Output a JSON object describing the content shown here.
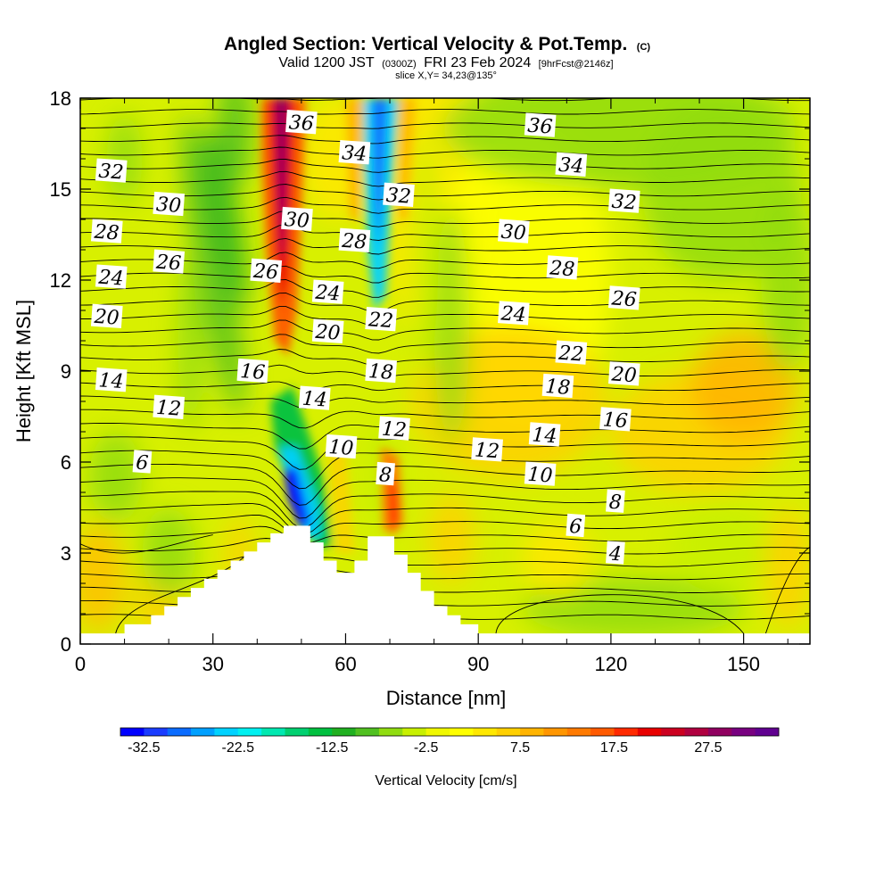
{
  "chart_data": {
    "type": "contour",
    "title": "Angled Section: Vertical Velocity & Pot.Temp.",
    "title_unit": "(C)",
    "subtitle": {
      "part1": "Valid 1200 JST",
      "part2": "(0300Z)",
      "part3": "FRI 23 Feb 2024",
      "part4": "[9hrFcst@2146z]"
    },
    "slice_text": "slice X,Y= 34,23@135°",
    "xlabel": "Distance [nm]",
    "ylabel": "Height [Kft MSL]",
    "xlim": [
      0,
      165
    ],
    "ylim": [
      0,
      18
    ],
    "x_ticks": [
      0,
      30,
      60,
      90,
      120,
      150
    ],
    "y_ticks": [
      0,
      3,
      6,
      9,
      12,
      15,
      18
    ],
    "colorbar": {
      "label": "Vertical Velocity [cm/s]",
      "range": [
        -35,
        35
      ],
      "tick_values": [
        "-32.5",
        "-22.5",
        "-12.5",
        "-2.5",
        "7.5",
        "17.5",
        "27.5"
      ],
      "colors": [
        "#0000ff",
        "#1a3cff",
        "#0a6cff",
        "#00a0ff",
        "#00d2ff",
        "#00f0f0",
        "#00e8b0",
        "#00d070",
        "#00c040",
        "#20b020",
        "#50c020",
        "#90dc10",
        "#c8f000",
        "#f0f800",
        "#ffff00",
        "#ffe800",
        "#ffd000",
        "#ffb400",
        "#ff9600",
        "#ff7a00",
        "#ff5a00",
        "#ff2a00",
        "#e80000",
        "#cc0020",
        "#b00040",
        "#900060",
        "#780080",
        "#600090"
      ]
    },
    "terrain_kft": [
      [
        0,
        0.35
      ],
      [
        10,
        0.35
      ],
      [
        10,
        0.65
      ],
      [
        16,
        0.65
      ],
      [
        16,
        0.95
      ],
      [
        19,
        0.95
      ],
      [
        19,
        1.25
      ],
      [
        22,
        1.25
      ],
      [
        22,
        1.55
      ],
      [
        25,
        1.55
      ],
      [
        25,
        1.85
      ],
      [
        28,
        1.85
      ],
      [
        28,
        2.15
      ],
      [
        31,
        2.15
      ],
      [
        31,
        2.45
      ],
      [
        34,
        2.45
      ],
      [
        34,
        2.75
      ],
      [
        37,
        2.75
      ],
      [
        37,
        3.05
      ],
      [
        40,
        3.05
      ],
      [
        40,
        3.35
      ],
      [
        43,
        3.35
      ],
      [
        43,
        3.65
      ],
      [
        46,
        3.65
      ],
      [
        46,
        3.9
      ],
      [
        52,
        3.9
      ],
      [
        52,
        3.35
      ],
      [
        55,
        3.35
      ],
      [
        55,
        2.75
      ],
      [
        58,
        2.75
      ],
      [
        58,
        2.35
      ],
      [
        62,
        2.35
      ],
      [
        62,
        2.75
      ],
      [
        65,
        2.75
      ],
      [
        65,
        3.55
      ],
      [
        71,
        3.55
      ],
      [
        71,
        2.95
      ],
      [
        74,
        2.95
      ],
      [
        74,
        2.35
      ],
      [
        77,
        2.35
      ],
      [
        77,
        1.75
      ],
      [
        80,
        1.75
      ],
      [
        80,
        1.25
      ],
      [
        83,
        1.25
      ],
      [
        83,
        0.95
      ],
      [
        86,
        0.95
      ],
      [
        86,
        0.65
      ],
      [
        90,
        0.65
      ],
      [
        90,
        0.35
      ],
      [
        165,
        0.35
      ]
    ],
    "contour_labels": [
      {
        "x": 50,
        "y": 17.2,
        "text": "36"
      },
      {
        "x": 104,
        "y": 17.1,
        "text": "36"
      },
      {
        "x": 62,
        "y": 16.2,
        "text": "34"
      },
      {
        "x": 111,
        "y": 15.8,
        "text": "34"
      },
      {
        "x": 7,
        "y": 15.6,
        "text": "32"
      },
      {
        "x": 72,
        "y": 14.8,
        "text": "32"
      },
      {
        "x": 123,
        "y": 14.6,
        "text": "32"
      },
      {
        "x": 20,
        "y": 14.5,
        "text": "30"
      },
      {
        "x": 49,
        "y": 14.0,
        "text": "30"
      },
      {
        "x": 98,
        "y": 13.6,
        "text": "30"
      },
      {
        "x": 6,
        "y": 13.6,
        "text": "28"
      },
      {
        "x": 62,
        "y": 13.3,
        "text": "28"
      },
      {
        "x": 109,
        "y": 12.4,
        "text": "28"
      },
      {
        "x": 20,
        "y": 12.6,
        "text": "26"
      },
      {
        "x": 42,
        "y": 12.3,
        "text": "26"
      },
      {
        "x": 123,
        "y": 11.4,
        "text": "26"
      },
      {
        "x": 7,
        "y": 12.1,
        "text": "24"
      },
      {
        "x": 56,
        "y": 11.6,
        "text": "24"
      },
      {
        "x": 98,
        "y": 10.9,
        "text": "24"
      },
      {
        "x": 6,
        "y": 10.8,
        "text": "20"
      },
      {
        "x": 56,
        "y": 10.3,
        "text": "20"
      },
      {
        "x": 123,
        "y": 8.9,
        "text": "20"
      },
      {
        "x": 68,
        "y": 10.7,
        "text": "22"
      },
      {
        "x": 111,
        "y": 9.6,
        "text": "22"
      },
      {
        "x": 39,
        "y": 9.0,
        "text": "16"
      },
      {
        "x": 121,
        "y": 7.4,
        "text": "16"
      },
      {
        "x": 68,
        "y": 9.0,
        "text": "18"
      },
      {
        "x": 108,
        "y": 8.5,
        "text": "18"
      },
      {
        "x": 7,
        "y": 8.7,
        "text": "14"
      },
      {
        "x": 53,
        "y": 8.1,
        "text": "14"
      },
      {
        "x": 105,
        "y": 6.9,
        "text": "14"
      },
      {
        "x": 20,
        "y": 7.8,
        "text": "12"
      },
      {
        "x": 71,
        "y": 7.1,
        "text": "12"
      },
      {
        "x": 92,
        "y": 6.4,
        "text": "12"
      },
      {
        "x": 59,
        "y": 6.5,
        "text": "10"
      },
      {
        "x": 104,
        "y": 5.6,
        "text": "10"
      },
      {
        "x": 14,
        "y": 6.0,
        "text": "6"
      },
      {
        "x": 112,
        "y": 3.9,
        "text": "6"
      },
      {
        "x": 69,
        "y": 5.6,
        "text": "8"
      },
      {
        "x": 121,
        "y": 4.7,
        "text": "8"
      },
      {
        "x": 121,
        "y": 3.0,
        "text": "4"
      }
    ]
  }
}
